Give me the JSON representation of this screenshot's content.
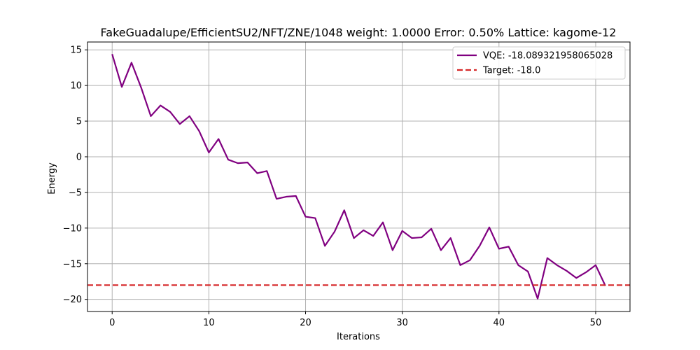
{
  "chart_data": {
    "type": "line",
    "title": "FakeGuadalupe/EfficientSU2/NFT/ZNE/1048 weight: 1.0000 Error: 0.50% Lattice: kagome-12",
    "xlabel": "Iterations",
    "ylabel": "Energy",
    "xlim": [
      -2.55,
      53.55
    ],
    "ylim": [
      -21.7,
      16.1
    ],
    "xticks": [
      0,
      10,
      20,
      30,
      40,
      50
    ],
    "yticks": [
      15,
      10,
      5,
      0,
      -5,
      -10,
      -15,
      -20
    ],
    "grid": true,
    "legend_position": "upper-right",
    "series": [
      {
        "name": "VQE: -18.089321958065028",
        "color": "#800080",
        "style": "solid",
        "x": [
          0,
          1,
          2,
          3,
          4,
          5,
          6,
          7,
          8,
          9,
          10,
          11,
          12,
          13,
          14,
          15,
          16,
          17,
          18,
          19,
          20,
          21,
          22,
          23,
          24,
          25,
          26,
          27,
          28,
          29,
          30,
          31,
          32,
          33,
          34,
          35,
          36,
          37,
          38,
          39,
          40,
          41,
          42,
          43,
          44,
          45,
          46,
          47,
          48,
          49,
          50,
          51
        ],
        "y": [
          14.4,
          9.8,
          13.2,
          9.7,
          5.7,
          7.2,
          6.3,
          4.6,
          5.7,
          3.6,
          0.6,
          2.5,
          -0.4,
          -0.9,
          -0.8,
          -2.3,
          -2.0,
          -5.9,
          -5.6,
          -5.5,
          -8.4,
          -8.6,
          -12.5,
          -10.5,
          -7.5,
          -11.4,
          -10.3,
          -11.1,
          -9.2,
          -13.1,
          -10.4,
          -11.4,
          -11.3,
          -10.1,
          -13.1,
          -11.4,
          -15.2,
          -14.5,
          -12.5,
          -9.9,
          -12.9,
          -12.6,
          -15.2,
          -16.1,
          -19.9,
          -14.2,
          -15.2,
          -16.0,
          -17.0,
          -16.2,
          -15.2,
          -18.09
        ]
      },
      {
        "name": "Target: -18.0",
        "color": "#d62728",
        "style": "dashed",
        "y_constant": -18.0
      }
    ]
  }
}
